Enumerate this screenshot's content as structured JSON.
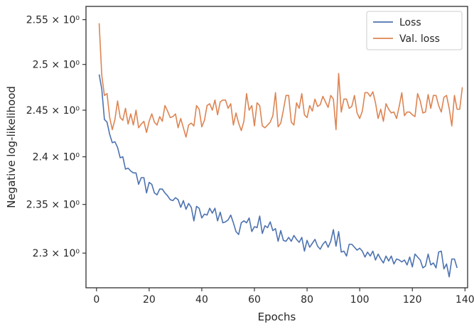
{
  "chart_data": {
    "type": "line",
    "title": "",
    "xlabel": "Epochs",
    "ylabel": "Negative log-likelihood",
    "xlim": [
      -4,
      141
    ],
    "ylim": [
      2.265,
      2.565
    ],
    "yscale": "log",
    "grid": false,
    "legend_position": "top-right",
    "x_ticks": [
      0,
      20,
      40,
      60,
      80,
      100,
      120,
      140
    ],
    "x_tick_labels": [
      "0",
      "20",
      "40",
      "60",
      "80",
      "100",
      "120",
      "140"
    ],
    "y_ticks": [
      2.3,
      2.35,
      2.4,
      2.45,
      2.5,
      2.55
    ],
    "y_tick_labels": [
      "2.3 × 10⁰",
      "2.35 × 10⁰",
      "2.4 × 10⁰",
      "2.45 × 10⁰",
      "2.5 × 10⁰",
      "2.55 × 10⁰"
    ],
    "x_start": 1,
    "series": [
      {
        "name": "Loss",
        "color": "#4c72b0",
        "values": [
          2.489,
          2.473,
          2.44,
          2.437,
          2.424,
          2.415,
          2.416,
          2.41,
          2.399,
          2.4,
          2.387,
          2.388,
          2.385,
          2.383,
          2.383,
          2.371,
          2.378,
          2.378,
          2.362,
          2.373,
          2.371,
          2.362,
          2.36,
          2.366,
          2.366,
          2.362,
          2.359,
          2.355,
          2.354,
          2.357,
          2.355,
          2.347,
          2.354,
          2.345,
          2.351,
          2.347,
          2.333,
          2.348,
          2.346,
          2.336,
          2.34,
          2.339,
          2.346,
          2.341,
          2.346,
          2.333,
          2.342,
          2.331,
          2.332,
          2.334,
          2.339,
          2.331,
          2.322,
          2.319,
          2.331,
          2.333,
          2.331,
          2.336,
          2.322,
          2.327,
          2.326,
          2.338,
          2.32,
          2.328,
          2.326,
          2.332,
          2.323,
          2.325,
          2.312,
          2.323,
          2.313,
          2.312,
          2.316,
          2.312,
          2.318,
          2.314,
          2.311,
          2.316,
          2.302,
          2.313,
          2.306,
          2.31,
          2.314,
          2.307,
          2.304,
          2.309,
          2.312,
          2.306,
          2.312,
          2.324,
          2.307,
          2.322,
          2.301,
          2.302,
          2.297,
          2.309,
          2.309,
          2.306,
          2.303,
          2.305,
          2.302,
          2.296,
          2.301,
          2.297,
          2.302,
          2.293,
          2.299,
          2.294,
          2.29,
          2.297,
          2.292,
          2.297,
          2.289,
          2.294,
          2.293,
          2.291,
          2.293,
          2.288,
          2.296,
          2.286,
          2.299,
          2.296,
          2.293,
          2.285,
          2.287,
          2.299,
          2.288,
          2.29,
          2.285,
          2.301,
          2.302,
          2.284,
          2.289,
          2.276,
          2.294,
          2.294,
          2.285
        ]
      },
      {
        "name": "Val. loss",
        "color": "#dd8452",
        "values": [
          2.546,
          2.488,
          2.466,
          2.468,
          2.442,
          2.429,
          2.44,
          2.46,
          2.442,
          2.439,
          2.452,
          2.435,
          2.446,
          2.434,
          2.45,
          2.431,
          2.435,
          2.438,
          2.426,
          2.438,
          2.446,
          2.437,
          2.434,
          2.443,
          2.438,
          2.455,
          2.449,
          2.442,
          2.443,
          2.446,
          2.431,
          2.441,
          2.431,
          2.421,
          2.434,
          2.436,
          2.433,
          2.455,
          2.451,
          2.432,
          2.439,
          2.455,
          2.457,
          2.45,
          2.461,
          2.445,
          2.459,
          2.461,
          2.461,
          2.452,
          2.457,
          2.434,
          2.447,
          2.436,
          2.428,
          2.438,
          2.468,
          2.45,
          2.455,
          2.433,
          2.458,
          2.455,
          2.433,
          2.431,
          2.434,
          2.437,
          2.444,
          2.469,
          2.432,
          2.436,
          2.45,
          2.466,
          2.466,
          2.437,
          2.434,
          2.458,
          2.452,
          2.468,
          2.445,
          2.442,
          2.455,
          2.449,
          2.462,
          2.454,
          2.456,
          2.465,
          2.459,
          2.453,
          2.466,
          2.462,
          2.429,
          2.49,
          2.448,
          2.462,
          2.462,
          2.452,
          2.454,
          2.466,
          2.447,
          2.441,
          2.449,
          2.469,
          2.469,
          2.465,
          2.47,
          2.458,
          2.441,
          2.451,
          2.438,
          2.457,
          2.451,
          2.447,
          2.448,
          2.441,
          2.454,
          2.469,
          2.444,
          2.448,
          2.448,
          2.445,
          2.443,
          2.468,
          2.46,
          2.447,
          2.448,
          2.467,
          2.452,
          2.466,
          2.466,
          2.455,
          2.448,
          2.464,
          2.466,
          2.452,
          2.433,
          2.466,
          2.451,
          2.451,
          2.475
        ]
      }
    ]
  }
}
